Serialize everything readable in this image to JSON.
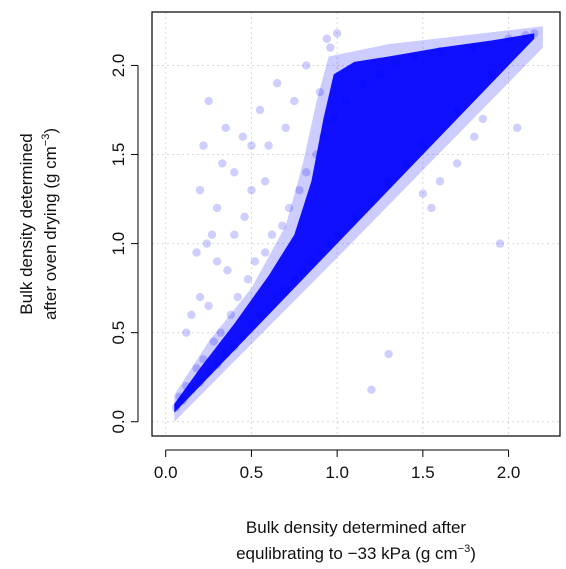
{
  "chart_data": {
    "type": "scatter",
    "title": "",
    "xlabel_lines": [
      "Bulk density determined after",
      "equlibrating to −33 kPa (g cm",
      "−3",
      ")"
    ],
    "ylabel_lines": [
      "Bulk density determined",
      "after oven drying (g cm",
      "−3",
      ")"
    ],
    "xlim": [
      -0.08,
      2.3
    ],
    "ylim": [
      -0.08,
      2.3
    ],
    "xticks": [
      0.0,
      0.5,
      1.0,
      1.5,
      2.0
    ],
    "yticks": [
      0.0,
      0.5,
      1.0,
      1.5,
      2.0
    ],
    "xtick_labels": [
      "0.0",
      "0.5",
      "1.0",
      "1.5",
      "2.0"
    ],
    "ytick_labels": [
      "0.0",
      "0.5",
      "1.0",
      "1.5",
      "2.0"
    ],
    "grid": true,
    "point_color": "#0000ff",
    "point_opacity": 0.12,
    "dense_region": "points fill the band between the 1:1 line y = x and an upper envelope; densest for x 0.9–2.1, y 1.0–2.2",
    "points": [
      [
        0.06,
        0.08
      ],
      [
        0.08,
        0.14
      ],
      [
        0.1,
        0.12
      ],
      [
        0.12,
        0.2
      ],
      [
        0.15,
        0.18
      ],
      [
        0.18,
        0.3
      ],
      [
        0.2,
        0.22
      ],
      [
        0.22,
        0.35
      ],
      [
        0.25,
        0.28
      ],
      [
        0.28,
        0.45
      ],
      [
        0.3,
        0.32
      ],
      [
        0.32,
        0.5
      ],
      [
        0.35,
        0.38
      ],
      [
        0.38,
        0.6
      ],
      [
        0.4,
        0.42
      ],
      [
        0.42,
        0.7
      ],
      [
        0.45,
        0.48
      ],
      [
        0.48,
        0.8
      ],
      [
        0.5,
        0.55
      ],
      [
        0.52,
        0.9
      ],
      [
        0.55,
        0.6
      ],
      [
        0.58,
        0.95
      ],
      [
        0.6,
        0.64
      ],
      [
        0.62,
        1.05
      ],
      [
        0.65,
        0.7
      ],
      [
        0.68,
        1.1
      ],
      [
        0.7,
        0.74
      ],
      [
        0.72,
        1.2
      ],
      [
        0.75,
        0.8
      ],
      [
        0.78,
        1.3
      ],
      [
        0.8,
        0.85
      ],
      [
        0.82,
        1.4
      ],
      [
        0.85,
        0.9
      ],
      [
        0.88,
        1.5
      ],
      [
        0.9,
        0.95
      ],
      [
        0.92,
        1.6
      ],
      [
        0.95,
        1.0
      ],
      [
        0.98,
        1.7
      ],
      [
        1.0,
        1.05
      ],
      [
        1.05,
        1.8
      ],
      [
        1.1,
        1.15
      ],
      [
        1.15,
        1.9
      ],
      [
        1.2,
        1.25
      ],
      [
        1.25,
        1.95
      ],
      [
        1.3,
        1.35
      ],
      [
        1.35,
        2.0
      ],
      [
        1.4,
        1.45
      ],
      [
        1.45,
        2.05
      ],
      [
        1.5,
        1.55
      ],
      [
        1.6,
        2.08
      ],
      [
        1.7,
        1.75
      ],
      [
        1.8,
        2.1
      ],
      [
        1.9,
        1.95
      ],
      [
        2.0,
        2.15
      ],
      [
        2.1,
        2.17
      ],
      [
        2.15,
        2.18
      ],
      [
        0.2,
        1.3
      ],
      [
        0.22,
        1.55
      ],
      [
        0.25,
        1.8
      ],
      [
        0.27,
        1.05
      ],
      [
        0.3,
        1.2
      ],
      [
        0.33,
        1.45
      ],
      [
        0.35,
        1.65
      ],
      [
        0.4,
        1.4
      ],
      [
        0.45,
        1.6
      ],
      [
        0.5,
        1.55
      ],
      [
        0.55,
        1.75
      ],
      [
        0.6,
        1.55
      ],
      [
        0.65,
        1.9
      ],
      [
        0.7,
        1.65
      ],
      [
        0.75,
        1.8
      ],
      [
        0.82,
        2.0
      ],
      [
        0.18,
        0.95
      ],
      [
        0.24,
        1.0
      ],
      [
        0.3,
        0.9
      ],
      [
        0.36,
        0.85
      ],
      [
        0.4,
        1.05
      ],
      [
        0.46,
        1.15
      ],
      [
        0.5,
        1.3
      ],
      [
        0.58,
        1.35
      ],
      [
        0.15,
        0.6
      ],
      [
        0.2,
        0.7
      ],
      [
        0.12,
        0.5
      ],
      [
        0.25,
        0.65
      ],
      [
        1.2,
        0.18
      ],
      [
        1.95,
        1.0
      ],
      [
        1.3,
        0.38
      ],
      [
        1.55,
        1.2
      ],
      [
        1.7,
        1.45
      ],
      [
        1.8,
        1.6
      ],
      [
        2.05,
        1.65
      ],
      [
        1.6,
        1.35
      ],
      [
        1.5,
        1.28
      ],
      [
        1.85,
        1.7
      ],
      [
        0.94,
        2.15
      ],
      [
        0.96,
        2.1
      ],
      [
        1.0,
        2.18
      ],
      [
        0.9,
        1.85
      ]
    ]
  }
}
